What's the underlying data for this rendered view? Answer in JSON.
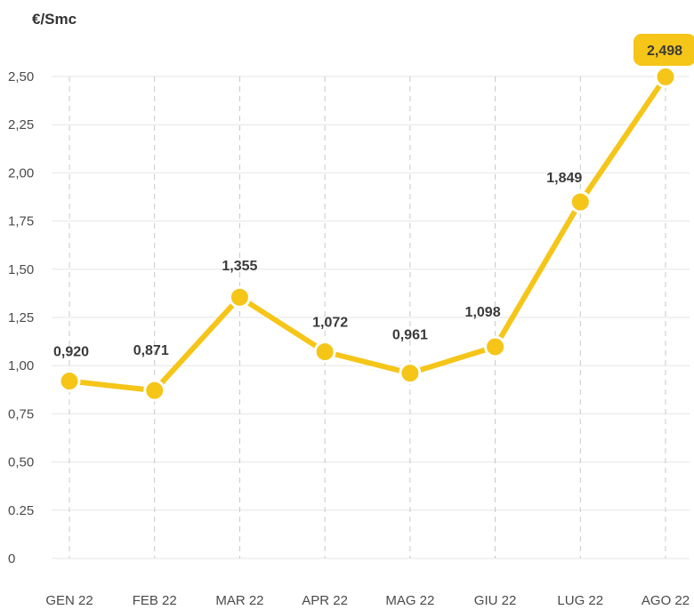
{
  "unit_label": "€/Smc",
  "colors": {
    "line": "#f5c518",
    "grid": "#e6e6e6",
    "vgrid": "#c8c8c8",
    "highlight_bg": "#f5c518"
  },
  "chart_data": {
    "type": "line",
    "categories": [
      "GEN 22",
      "FEB 22",
      "MAR 22",
      "APR 22",
      "MAG 22",
      "GIU 22",
      "LUG 22",
      "AGO 22"
    ],
    "values": [
      0.92,
      0.871,
      1.355,
      1.072,
      0.961,
      1.098,
      1.849,
      2.498
    ],
    "value_labels": [
      "0,920",
      "0,871",
      "1,355",
      "1,072",
      "0,961",
      "1,098",
      "1,849",
      "2,498"
    ],
    "yticks": [
      0,
      0.25,
      0.5,
      0.75,
      1.0,
      1.25,
      1.5,
      1.75,
      2.0,
      2.25,
      2.5
    ],
    "ytick_labels": [
      "0",
      "0.25",
      "0,50",
      "0,75",
      "1,00",
      "1,25",
      "1,50",
      "1,75",
      "2,00",
      "2,25",
      "2,50"
    ],
    "ylim": [
      0,
      2.5
    ],
    "highlight_index": 7,
    "grid": true
  }
}
